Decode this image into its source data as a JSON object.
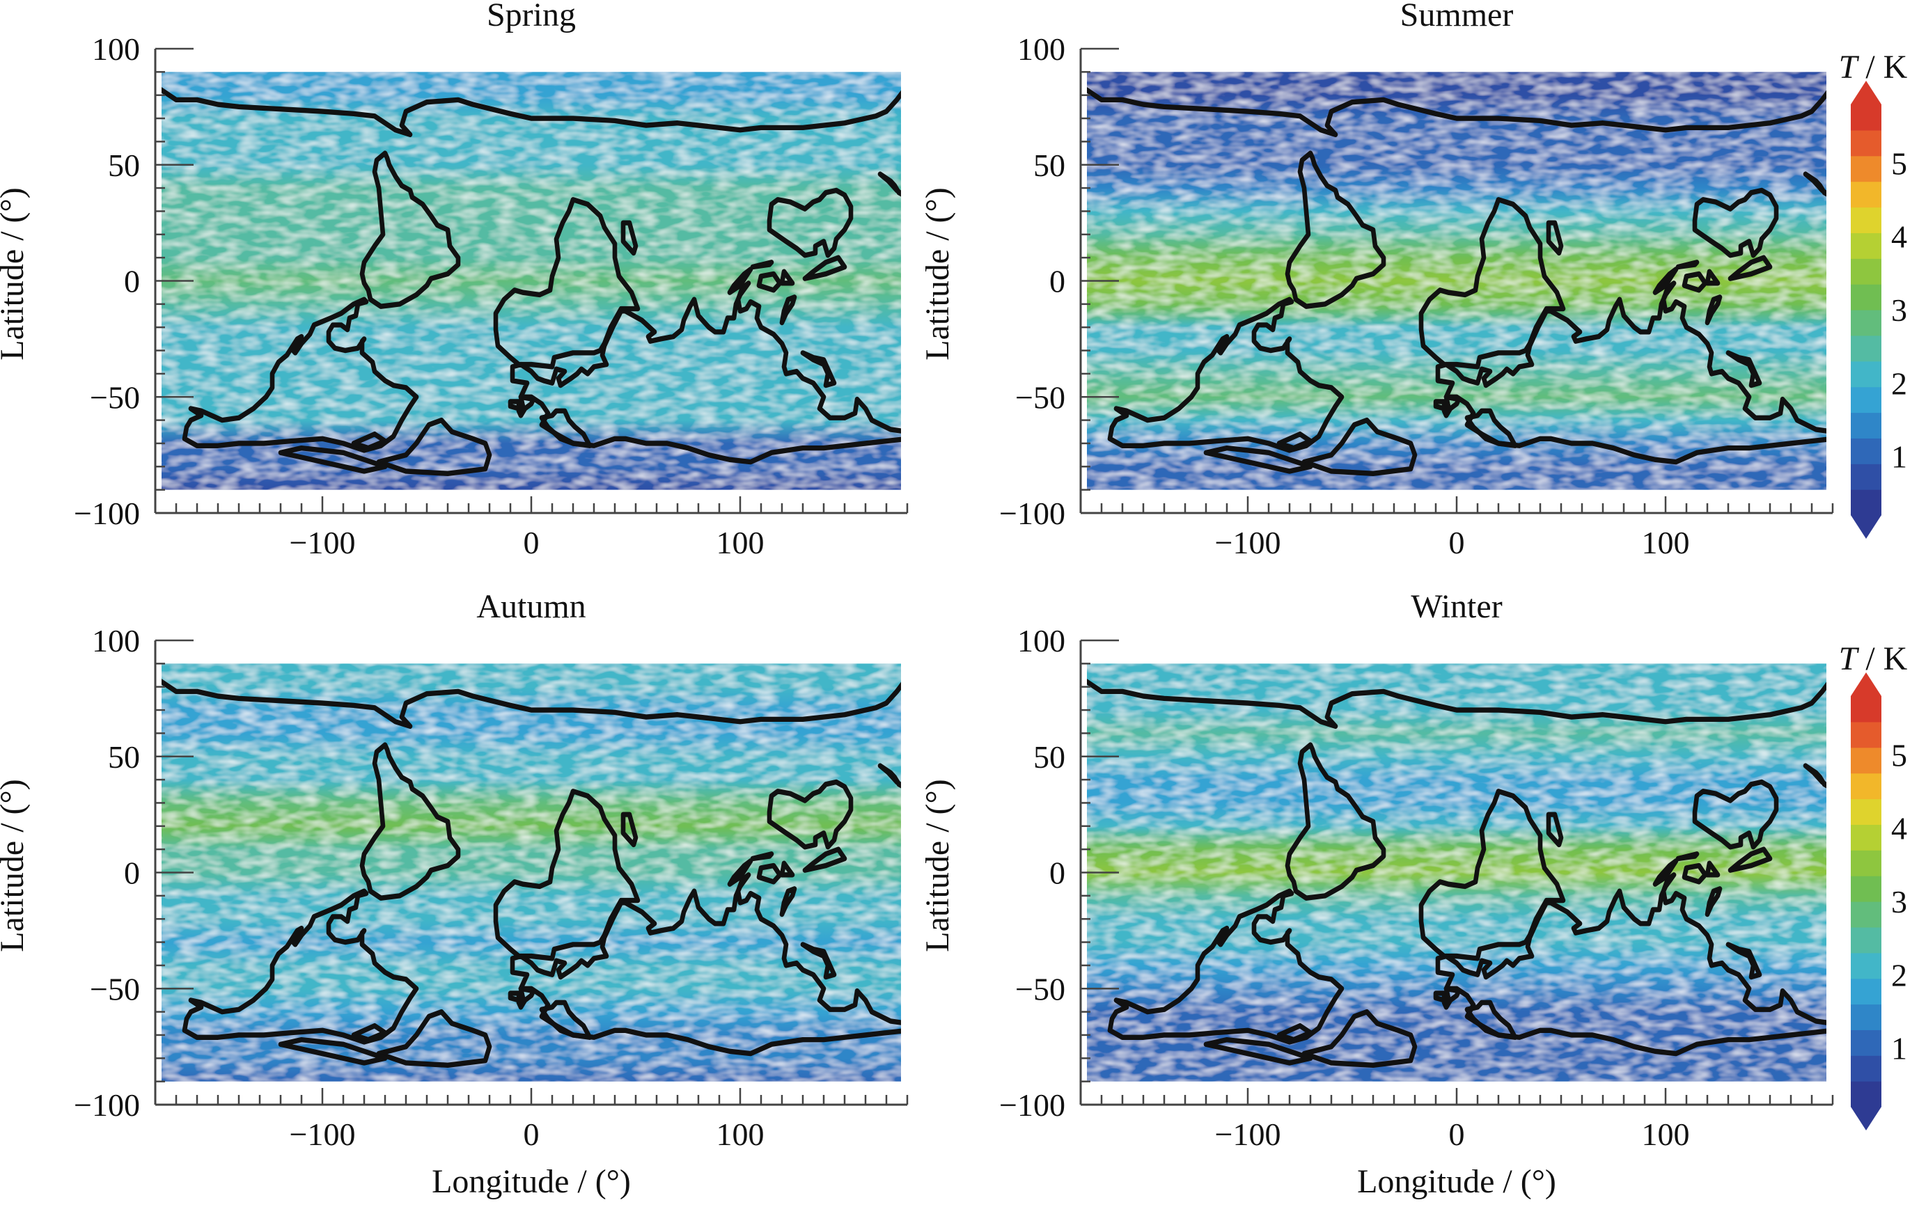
{
  "chart_data": [
    {
      "type": "heatmap",
      "title": "Spring",
      "xlabel": "",
      "ylabel": "Latitude / (°)",
      "xlim": [
        -180,
        180
      ],
      "ylim": [
        -100,
        100
      ],
      "x_ticks": [
        "−100",
        "0",
        "100"
      ],
      "y_ticks": [
        "100",
        "50",
        "0",
        "−50",
        "−100"
      ],
      "x_tick_values": [
        -100,
        0,
        100
      ],
      "y_tick_values": [
        100,
        50,
        0,
        -50,
        -100
      ],
      "data_extent": {
        "lon": [
          -177,
          177
        ],
        "lat": [
          -90,
          90
        ]
      },
      "colorbar": false,
      "zonal_mean_T": [
        {
          "lat": 90,
          "T": 1.7
        },
        {
          "lat": 80,
          "T": 1.9
        },
        {
          "lat": 70,
          "T": 2.0
        },
        {
          "lat": 60,
          "T": 2.1
        },
        {
          "lat": 50,
          "T": 2.2
        },
        {
          "lat": 40,
          "T": 2.5
        },
        {
          "lat": 30,
          "T": 2.6
        },
        {
          "lat": 20,
          "T": 2.4
        },
        {
          "lat": 10,
          "T": 2.5
        },
        {
          "lat": 0,
          "T": 2.8
        },
        {
          "lat": -10,
          "T": 2.5
        },
        {
          "lat": -20,
          "T": 2.3
        },
        {
          "lat": -30,
          "T": 2.3
        },
        {
          "lat": -40,
          "T": 2.2
        },
        {
          "lat": -50,
          "T": 2.3
        },
        {
          "lat": -60,
          "T": 2.0
        },
        {
          "lat": -70,
          "T": 1.2
        },
        {
          "lat": -80,
          "T": 0.9
        },
        {
          "lat": -90,
          "T": 0.8
        }
      ]
    },
    {
      "type": "heatmap",
      "title": "Summer",
      "xlabel": "",
      "ylabel": "Latitude / (°)",
      "xlim": [
        -180,
        180
      ],
      "ylim": [
        -100,
        100
      ],
      "x_ticks": [
        "−100",
        "0",
        "100"
      ],
      "y_ticks": [
        "100",
        "50",
        "0",
        "−50",
        "−100"
      ],
      "x_tick_values": [
        -100,
        0,
        100
      ],
      "y_tick_values": [
        100,
        50,
        0,
        -50,
        -100
      ],
      "data_extent": {
        "lon": [
          -177,
          177
        ],
        "lat": [
          -90,
          90
        ]
      },
      "colorbar": true,
      "zonal_mean_T": [
        {
          "lat": 90,
          "T": 0.8
        },
        {
          "lat": 80,
          "T": 0.8
        },
        {
          "lat": 70,
          "T": 0.9
        },
        {
          "lat": 60,
          "T": 1.0
        },
        {
          "lat": 50,
          "T": 1.2
        },
        {
          "lat": 40,
          "T": 1.5
        },
        {
          "lat": 30,
          "T": 2.2
        },
        {
          "lat": 20,
          "T": 2.6
        },
        {
          "lat": 10,
          "T": 3.2
        },
        {
          "lat": 0,
          "T": 3.6
        },
        {
          "lat": -10,
          "T": 3.1
        },
        {
          "lat": -20,
          "T": 2.3
        },
        {
          "lat": -30,
          "T": 2.1
        },
        {
          "lat": -40,
          "T": 2.5
        },
        {
          "lat": -50,
          "T": 2.9
        },
        {
          "lat": -60,
          "T": 2.3
        },
        {
          "lat": -70,
          "T": 1.3
        },
        {
          "lat": -80,
          "T": 1.0
        },
        {
          "lat": -90,
          "T": 0.9
        }
      ]
    },
    {
      "type": "heatmap",
      "title": "Autumn",
      "xlabel": "Longitude / (°)",
      "ylabel": "Latitude / (°)",
      "xlim": [
        -180,
        180
      ],
      "ylim": [
        -100,
        100
      ],
      "x_ticks": [
        "−100",
        "0",
        "100"
      ],
      "y_ticks": [
        "100",
        "50",
        "0",
        "−50",
        "−100"
      ],
      "x_tick_values": [
        -100,
        0,
        100
      ],
      "y_tick_values": [
        100,
        50,
        0,
        -50,
        -100
      ],
      "data_extent": {
        "lon": [
          -177,
          177
        ],
        "lat": [
          -90,
          90
        ]
      },
      "colorbar": false,
      "zonal_mean_T": [
        {
          "lat": 90,
          "T": 2.0
        },
        {
          "lat": 80,
          "T": 2.0
        },
        {
          "lat": 70,
          "T": 1.9
        },
        {
          "lat": 60,
          "T": 1.9
        },
        {
          "lat": 50,
          "T": 2.0
        },
        {
          "lat": 40,
          "T": 2.3
        },
        {
          "lat": 30,
          "T": 2.8
        },
        {
          "lat": 20,
          "T": 3.0
        },
        {
          "lat": 10,
          "T": 2.6
        },
        {
          "lat": 0,
          "T": 2.4
        },
        {
          "lat": -10,
          "T": 2.3
        },
        {
          "lat": -20,
          "T": 2.0
        },
        {
          "lat": -30,
          "T": 1.9
        },
        {
          "lat": -40,
          "T": 2.1
        },
        {
          "lat": -50,
          "T": 2.1
        },
        {
          "lat": -60,
          "T": 1.9
        },
        {
          "lat": -70,
          "T": 1.5
        },
        {
          "lat": -80,
          "T": 1.3
        },
        {
          "lat": -90,
          "T": 1.2
        }
      ]
    },
    {
      "type": "heatmap",
      "title": "Winter",
      "xlabel": "Longitude / (°)",
      "ylabel": "Latitude / (°)",
      "xlim": [
        -180,
        180
      ],
      "ylim": [
        -100,
        100
      ],
      "x_ticks": [
        "−100",
        "0",
        "100"
      ],
      "y_ticks": [
        "100",
        "50",
        "0",
        "−50",
        "−100"
      ],
      "x_tick_values": [
        -100,
        0,
        100
      ],
      "y_tick_values": [
        100,
        50,
        0,
        -50,
        -100
      ],
      "data_extent": {
        "lon": [
          -177,
          177
        ],
        "lat": [
          -90,
          90
        ]
      },
      "colorbar": true,
      "zonal_mean_T": [
        {
          "lat": 90,
          "T": 2.3
        },
        {
          "lat": 80,
          "T": 2.2
        },
        {
          "lat": 70,
          "T": 2.3
        },
        {
          "lat": 60,
          "T": 2.4
        },
        {
          "lat": 50,
          "T": 2.1
        },
        {
          "lat": 40,
          "T": 1.8
        },
        {
          "lat": 30,
          "T": 1.8
        },
        {
          "lat": 20,
          "T": 2.2
        },
        {
          "lat": 10,
          "T": 3.0
        },
        {
          "lat": 0,
          "T": 3.5
        },
        {
          "lat": -10,
          "T": 2.6
        },
        {
          "lat": -20,
          "T": 2.1
        },
        {
          "lat": -30,
          "T": 2.0
        },
        {
          "lat": -40,
          "T": 1.8
        },
        {
          "lat": -50,
          "T": 1.4
        },
        {
          "lat": -60,
          "T": 1.2
        },
        {
          "lat": -70,
          "T": 1.0
        },
        {
          "lat": -80,
          "T": 0.9
        },
        {
          "lat": -90,
          "T": 0.9
        }
      ]
    }
  ],
  "colorbar": {
    "label_var": "T",
    "label_unit": " / K",
    "ticks": [
      "1",
      "2",
      "3",
      "4",
      "5"
    ],
    "tick_values": [
      1,
      2,
      3,
      4,
      5
    ],
    "range": [
      0.2,
      5.8
    ],
    "extend": "both",
    "colors": [
      "#2e3b93",
      "#2f4fa6",
      "#2f68b8",
      "#2f86c8",
      "#35a3d3",
      "#42b6c8",
      "#54bba3",
      "#62bd7c",
      "#70be52",
      "#8ec63f",
      "#b5d033",
      "#dfd32d",
      "#f2b72a",
      "#ee8a2b",
      "#e55b2c",
      "#d73a2a"
    ]
  }
}
